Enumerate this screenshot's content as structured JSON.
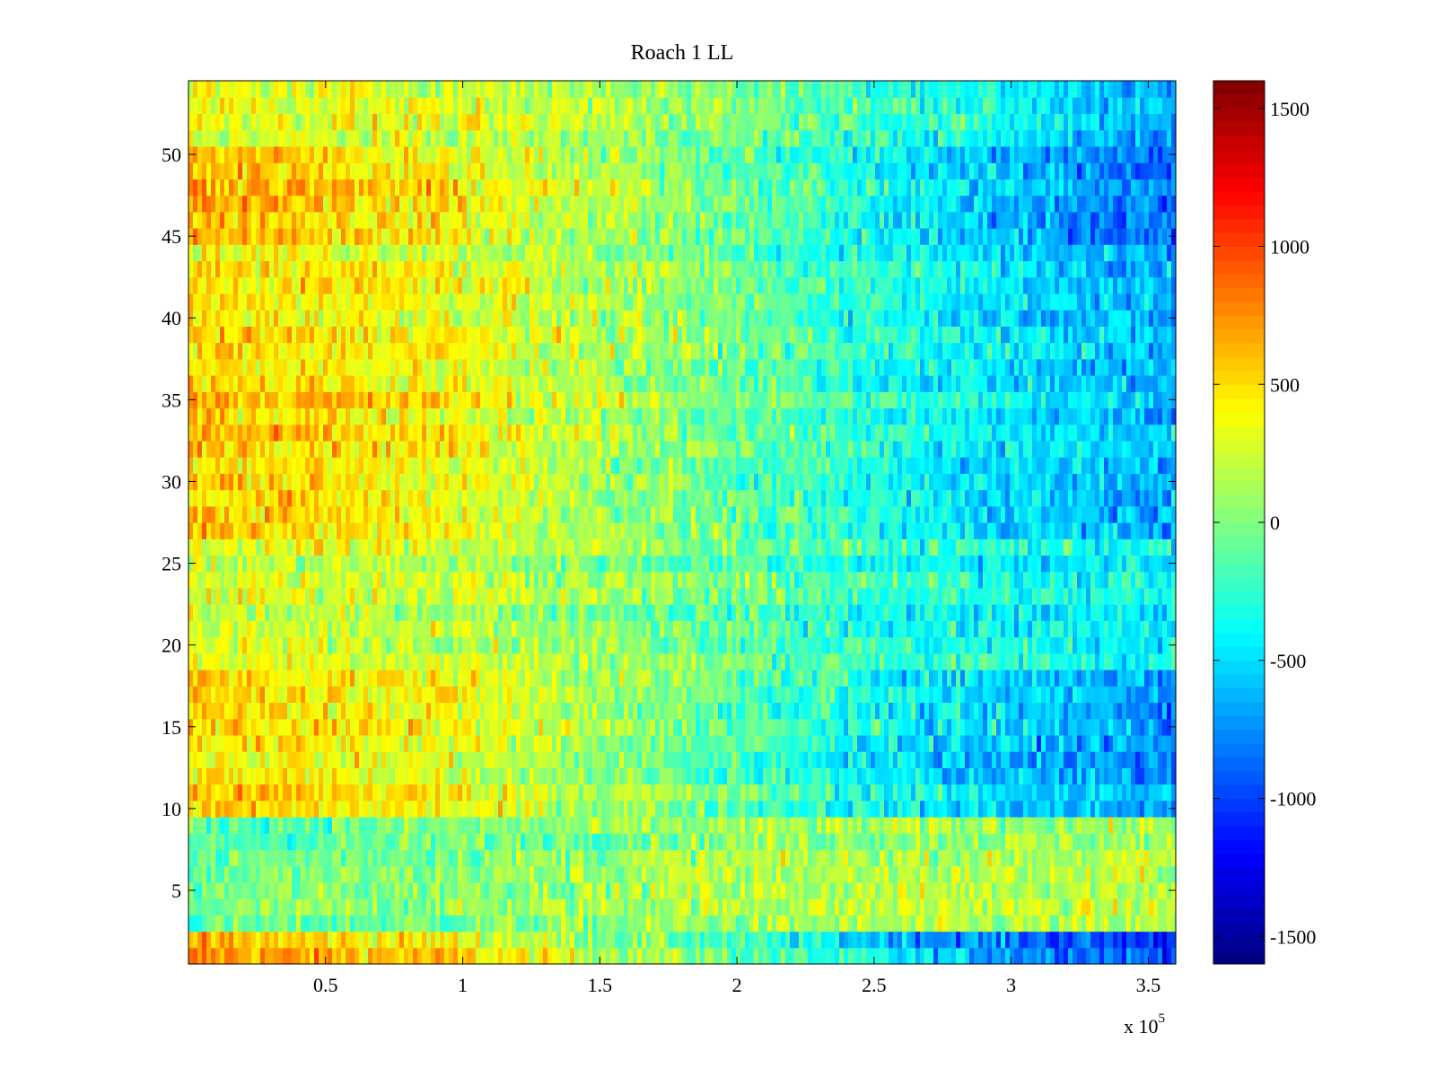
{
  "chart_data": {
    "type": "heatmap",
    "title": "Roach 1 LL",
    "xlabel": "",
    "ylabel": "",
    "x_exponent_label": {
      "base": "x 10",
      "exponent": "5"
    },
    "xlim": [
      0,
      3.6
    ],
    "ylim": [
      0.5,
      54.5
    ],
    "x_ticks": [
      0.5,
      1,
      1.5,
      2,
      2.5,
      3,
      3.5
    ],
    "x_tick_labels": [
      "0.5",
      "1",
      "1.5",
      "2",
      "2.5",
      "3",
      "3.5"
    ],
    "y_ticks": [
      5,
      10,
      15,
      20,
      25,
      30,
      35,
      40,
      45,
      50
    ],
    "y_tick_labels": [
      "5",
      "10",
      "15",
      "20",
      "25",
      "30",
      "35",
      "40",
      "45",
      "50"
    ],
    "grid": false,
    "colormap": "jet",
    "colorbar": {
      "clim": [
        -1600,
        1600
      ],
      "ticks": [
        -1500,
        -1000,
        -500,
        0,
        500,
        1000,
        1500
      ],
      "tick_labels": [
        "-1500",
        "-1000",
        "-500",
        "0",
        "500",
        "1000",
        "1500"
      ],
      "placement": "right"
    },
    "rows": 54,
    "row_trend_profile": {
      "x_fraction": [
        0.0,
        0.25,
        0.5,
        0.75,
        1.0
      ],
      "row_means_at_x_fraction": [
        {
          "rows": [
            1,
            2
          ],
          "values": [
            700,
            500,
            0,
            -600,
            -1000
          ]
        },
        {
          "rows": [
            3,
            9
          ],
          "values": [
            -100,
            0,
            100,
            150,
            150
          ]
        },
        {
          "rows": [
            10,
            18
          ],
          "values": [
            550,
            400,
            0,
            -450,
            -700
          ]
        },
        {
          "rows": [
            19,
            26
          ],
          "values": [
            300,
            250,
            0,
            -300,
            -400
          ]
        },
        {
          "rows": [
            27,
            36
          ],
          "values": [
            600,
            400,
            0,
            -400,
            -650
          ]
        },
        {
          "rows": [
            37,
            44
          ],
          "values": [
            450,
            350,
            0,
            -400,
            -700
          ]
        },
        {
          "rows": [
            45,
            50
          ],
          "values": [
            650,
            400,
            0,
            -500,
            -900
          ]
        },
        {
          "rows": [
            51,
            54
          ],
          "values": [
            350,
            300,
            100,
            -250,
            -650
          ]
        }
      ]
    }
  }
}
